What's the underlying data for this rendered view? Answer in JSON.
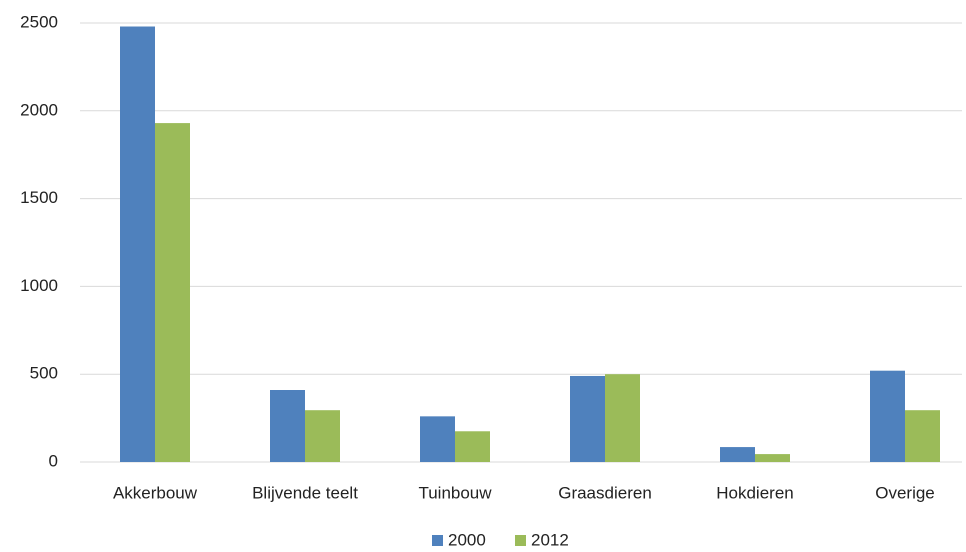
{
  "chart_data": {
    "type": "bar",
    "categories": [
      "Akkerbouw",
      "Blijvende teelt",
      "Tuinbouw",
      "Graasdieren",
      "Hokdieren",
      "Overige"
    ],
    "series": [
      {
        "name": "2000",
        "color": "#4f81bd",
        "values": [
          2480,
          410,
          260,
          490,
          85,
          520
        ]
      },
      {
        "name": "2012",
        "color": "#9bbb59",
        "values": [
          1930,
          295,
          175,
          500,
          45,
          295
        ]
      }
    ],
    "ylim": [
      0,
      2500
    ],
    "yticks": [
      0,
      500,
      1000,
      1500,
      2000,
      2500
    ],
    "grid": true,
    "legend": "bottom"
  }
}
